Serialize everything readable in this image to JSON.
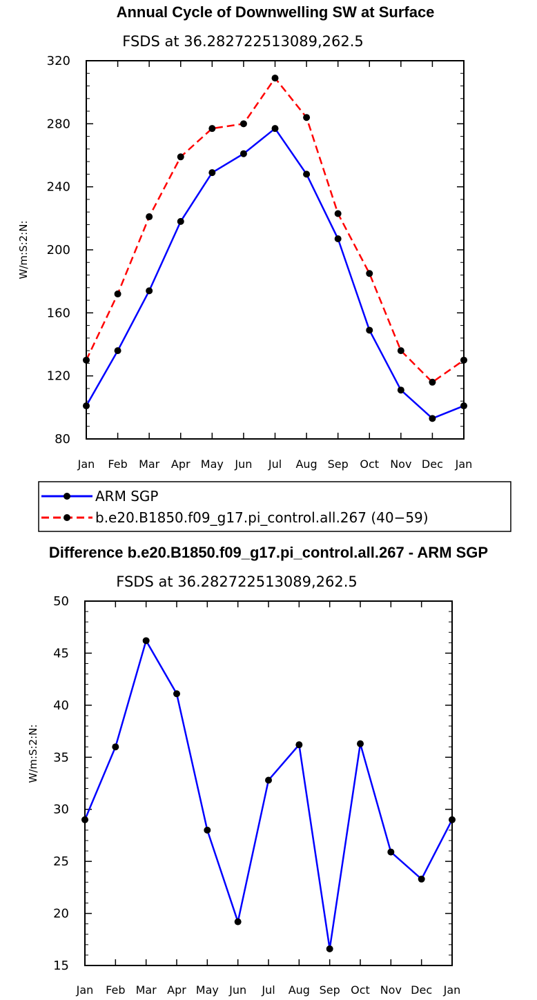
{
  "chart_data": [
    {
      "type": "line",
      "title": "Annual Cycle of Downwelling SW at Surface",
      "subtitle": "FSDS at 36.282722513089,262.5",
      "xlabel": "",
      "ylabel": "W/m:S:2:N:",
      "categories": [
        "Jan",
        "Feb",
        "Mar",
        "Apr",
        "May",
        "Jun",
        "Jul",
        "Aug",
        "Sep",
        "Oct",
        "Nov",
        "Dec",
        "Jan"
      ],
      "ylim": [
        80,
        320
      ],
      "yticks": [
        80,
        120,
        160,
        200,
        240,
        280,
        320
      ],
      "grid": false,
      "legend_position": "bottom",
      "series": [
        {
          "name": "ARM SGP",
          "color": "#0000ff",
          "dash": "solid",
          "values": [
            101,
            136,
            174,
            218,
            249,
            261,
            277,
            248,
            207,
            149,
            111,
            93,
            101
          ]
        },
        {
          "name": "b.e20.B1850.f09_g17.pi_control.all.267 (40−59)",
          "color": "#ff0000",
          "dash": "dashed",
          "values": [
            130,
            172,
            221,
            259,
            277,
            280,
            309,
            284,
            223,
            185,
            136,
            116,
            130
          ]
        }
      ]
    },
    {
      "type": "line",
      "title": "Difference b.e20.B1850.f09_g17.pi_control.all.267 - ARM SGP",
      "subtitle": "FSDS at 36.282722513089,262.5",
      "xlabel": "",
      "ylabel": "W/m:S:2:N:",
      "categories": [
        "Jan",
        "Feb",
        "Mar",
        "Apr",
        "May",
        "Jun",
        "Jul",
        "Aug",
        "Sep",
        "Oct",
        "Nov",
        "Dec",
        "Jan"
      ],
      "ylim": [
        15,
        50
      ],
      "yticks": [
        15,
        20,
        25,
        30,
        35,
        40,
        45,
        50
      ],
      "grid": false,
      "series": [
        {
          "name": "Difference",
          "color": "#0000ff",
          "dash": "solid",
          "values": [
            29,
            36,
            46.2,
            41.1,
            28,
            19.2,
            32.8,
            36.2,
            16.6,
            36.3,
            25.9,
            23.3,
            29
          ]
        }
      ]
    }
  ]
}
